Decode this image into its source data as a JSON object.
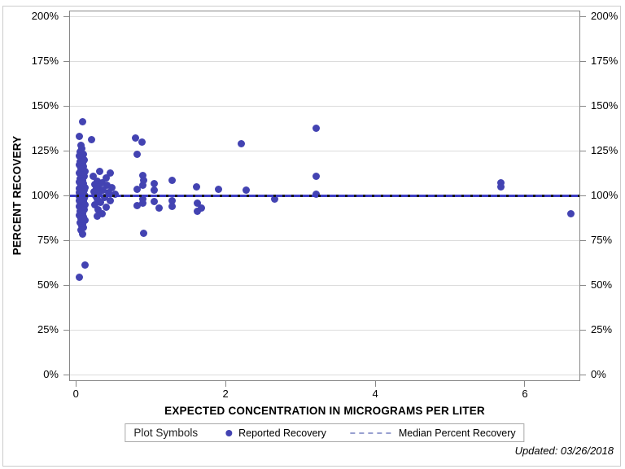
{
  "figure": {
    "updated_note": "Updated: 03/26/2018",
    "legend": {
      "title": "Plot Symbols",
      "series_label": "Reported Recovery",
      "line_label": "Median Percent Recovery"
    },
    "colors": {
      "marker": "#4343b2",
      "median_blue": "#3d3dc4",
      "median_dark": "#191919",
      "legend_dash": "#98a0d0",
      "grid": "#dcdcdc",
      "axis": "#878787",
      "frame": "#cccccc"
    }
  },
  "chart_data": {
    "type": "scatter",
    "title": "",
    "xlabel": "EXPECTED CONCENTRATION IN MICROGRAMS PER LITER",
    "ylabel": "PERCENT RECOVERY",
    "xlim": [
      -0.09,
      6.74
    ],
    "ylim": [
      -3.6,
      203.2
    ],
    "grid": "horizontal",
    "legend_position": "bottom",
    "x_ticks": [
      {
        "value": 0,
        "label": "0"
      },
      {
        "value": 2,
        "label": "2"
      },
      {
        "value": 4,
        "label": "4"
      },
      {
        "value": 6,
        "label": "6"
      }
    ],
    "y_ticks": [
      {
        "value": 0,
        "label": "0%"
      },
      {
        "value": 25,
        "label": "25%"
      },
      {
        "value": 50,
        "label": "50%"
      },
      {
        "value": 75,
        "label": "75%"
      },
      {
        "value": 100,
        "label": "100%"
      },
      {
        "value": 125,
        "label": "125%"
      },
      {
        "value": 150,
        "label": "150%"
      },
      {
        "value": 175,
        "label": "175%"
      },
      {
        "value": 200,
        "label": "200%"
      }
    ],
    "median_line": {
      "y": 100,
      "label": "Median Percent Recovery"
    },
    "series": [
      {
        "name": "Reported Recovery",
        "points": [
          [
            0.09,
            141
          ],
          [
            0.05,
            133
          ],
          [
            0.07,
            128
          ],
          [
            0.08,
            126
          ],
          [
            0.06,
            124.5
          ],
          [
            0.1,
            123
          ],
          [
            0.05,
            122
          ],
          [
            0.08,
            121
          ],
          [
            0.11,
            120
          ],
          [
            0.06,
            119
          ],
          [
            0.09,
            118
          ],
          [
            0.05,
            117
          ],
          [
            0.1,
            116
          ],
          [
            0.07,
            115
          ],
          [
            0.12,
            113.5
          ],
          [
            0.05,
            112.5
          ],
          [
            0.08,
            111.5
          ],
          [
            0.11,
            110.5
          ],
          [
            0.06,
            109.5
          ],
          [
            0.09,
            108.5
          ],
          [
            0.05,
            107.5
          ],
          [
            0.1,
            106.5
          ],
          [
            0.07,
            105.5
          ],
          [
            0.12,
            104.5
          ],
          [
            0.05,
            104
          ],
          [
            0.08,
            103.5
          ],
          [
            0.11,
            103
          ],
          [
            0.06,
            102.5
          ],
          [
            0.09,
            102
          ],
          [
            0.05,
            101.5
          ],
          [
            0.1,
            101
          ],
          [
            0.07,
            100.5
          ],
          [
            0.12,
            100
          ],
          [
            0.05,
            99.5
          ],
          [
            0.08,
            99
          ],
          [
            0.11,
            98.5
          ],
          [
            0.06,
            98
          ],
          [
            0.09,
            97.5
          ],
          [
            0.05,
            97
          ],
          [
            0.1,
            96.5
          ],
          [
            0.07,
            96
          ],
          [
            0.12,
            95
          ],
          [
            0.05,
            94
          ],
          [
            0.08,
            93
          ],
          [
            0.11,
            92
          ],
          [
            0.06,
            91
          ],
          [
            0.09,
            90
          ],
          [
            0.05,
            89
          ],
          [
            0.1,
            88
          ],
          [
            0.07,
            87
          ],
          [
            0.12,
            86
          ],
          [
            0.06,
            85
          ],
          [
            0.09,
            84
          ],
          [
            0.08,
            83
          ],
          [
            0.1,
            82
          ],
          [
            0.07,
            80.5
          ],
          [
            0.09,
            78.5
          ],
          [
            0.21,
            131
          ],
          [
            0.32,
            113.6
          ],
          [
            0.46,
            112.7
          ],
          [
            0.23,
            110.5
          ],
          [
            0.4,
            110
          ],
          [
            0.28,
            108
          ],
          [
            0.35,
            107
          ],
          [
            0.25,
            106
          ],
          [
            0.42,
            105.5
          ],
          [
            0.3,
            105
          ],
          [
            0.48,
            104.5
          ],
          [
            0.27,
            104
          ],
          [
            0.36,
            103
          ],
          [
            0.24,
            102
          ],
          [
            0.44,
            101.5
          ],
          [
            0.31,
            101
          ],
          [
            0.52,
            100.5
          ],
          [
            0.26,
            100
          ],
          [
            0.38,
            99
          ],
          [
            0.29,
            98
          ],
          [
            0.46,
            97
          ],
          [
            0.33,
            96
          ],
          [
            0.25,
            95
          ],
          [
            0.4,
            93.5
          ],
          [
            0.3,
            92
          ],
          [
            0.35,
            90
          ],
          [
            0.28,
            88.5
          ],
          [
            0.8,
            132
          ],
          [
            0.88,
            130
          ],
          [
            0.82,
            123
          ],
          [
            0.89,
            111
          ],
          [
            0.91,
            108.5
          ],
          [
            1.05,
            106.5
          ],
          [
            0.89,
            105.5
          ],
          [
            0.82,
            103.5
          ],
          [
            1.05,
            103
          ],
          [
            0.89,
            98
          ],
          [
            1.05,
            96.5
          ],
          [
            0.89,
            95.5
          ],
          [
            0.82,
            94.5
          ],
          [
            1.11,
            93
          ],
          [
            0.91,
            79
          ],
          [
            1.29,
            108.5
          ],
          [
            1.29,
            97
          ],
          [
            1.29,
            94
          ],
          [
            1.61,
            105
          ],
          [
            1.62,
            95.5
          ],
          [
            1.68,
            93
          ],
          [
            1.62,
            91
          ],
          [
            1.91,
            103.5
          ],
          [
            2.21,
            129
          ],
          [
            2.28,
            103
          ],
          [
            2.66,
            98
          ],
          [
            3.21,
            137.5
          ],
          [
            3.21,
            110.5
          ],
          [
            3.21,
            100.5
          ],
          [
            5.68,
            107
          ],
          [
            5.68,
            105
          ],
          [
            6.62,
            90
          ],
          [
            0.12,
            61
          ],
          [
            0.05,
            54.5
          ]
        ]
      }
    ]
  }
}
